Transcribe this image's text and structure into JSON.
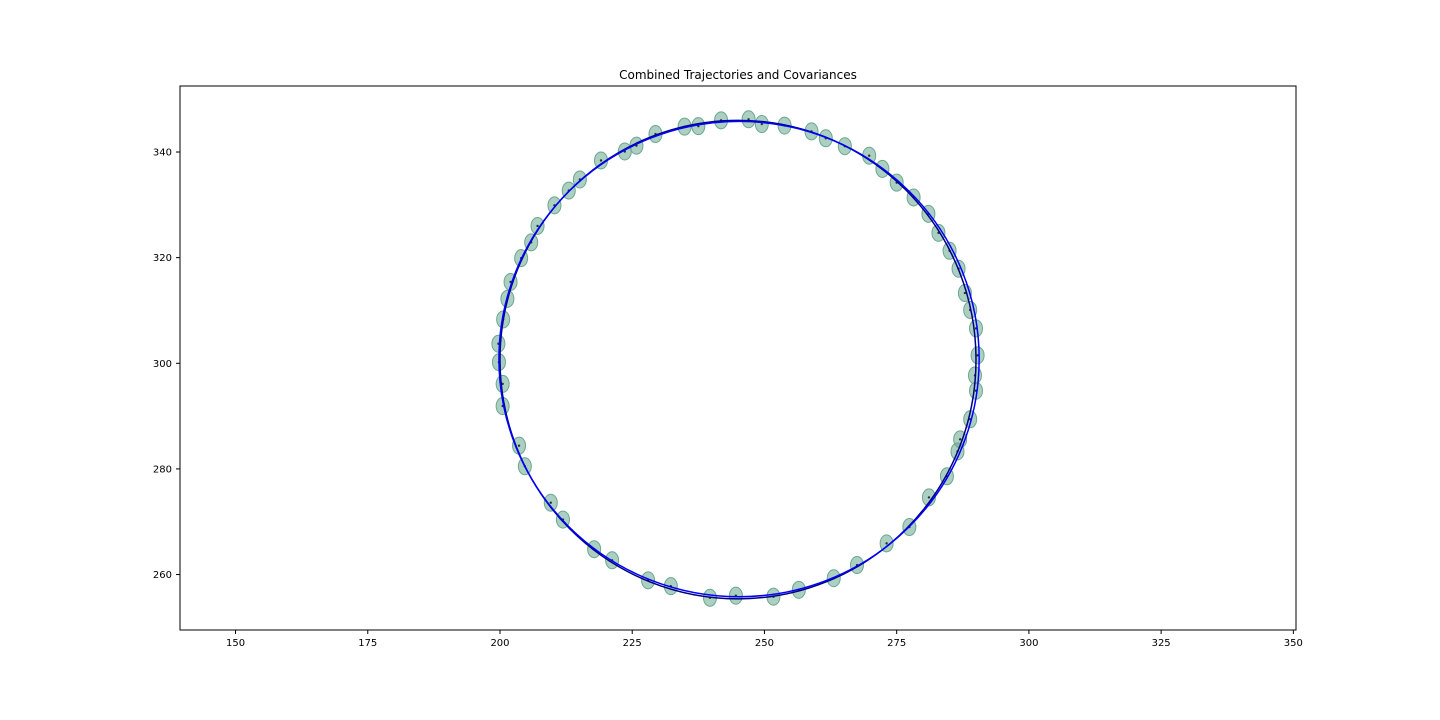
{
  "chart_data": {
    "type": "scatter",
    "title": "Combined Trajectories and Covariances",
    "xlabel": "",
    "ylabel": "",
    "xlim": [
      139.5,
      350.5
    ],
    "ylim": [
      249.5,
      352.5
    ],
    "xticks": [
      150,
      175,
      200,
      225,
      250,
      275,
      300,
      325,
      350
    ],
    "yticks": [
      260,
      280,
      300,
      320,
      340
    ],
    "grid": false,
    "series": [
      {
        "kind": "line",
        "color": "#000080",
        "center": [
          245.0,
          300.7
        ],
        "radius_x": 45.0,
        "radius_y": 45.3
      },
      {
        "kind": "line",
        "color": "#0000ff",
        "center": [
          245.2,
          300.8
        ],
        "radius_x": 45.4,
        "radius_y": 45.0
      },
      {
        "kind": "ellipse",
        "color": "#6aa88e",
        "points": [
          [
            247,
            346.2
          ],
          [
            249.5,
            345.3
          ],
          [
            253.8,
            345
          ],
          [
            258.9,
            343.9
          ],
          [
            261.6,
            342.6
          ],
          [
            265.2,
            341.1
          ],
          [
            269.8,
            339.3
          ],
          [
            272.3,
            336.8
          ],
          [
            275,
            334.2
          ],
          [
            278.2,
            331.4
          ],
          [
            281,
            328.3
          ],
          [
            282.9,
            324.7
          ],
          [
            285,
            321.3
          ],
          [
            286.7,
            317.9
          ],
          [
            287.9,
            313.3
          ],
          [
            288.9,
            310.1
          ],
          [
            290,
            306.6
          ],
          [
            290.3,
            301.5
          ],
          [
            289.8,
            297.7
          ],
          [
            290,
            294.8
          ],
          [
            288.9,
            289.4
          ],
          [
            287,
            285.6
          ],
          [
            286.5,
            283.3
          ],
          [
            284.5,
            278.6
          ],
          [
            281.1,
            274.6
          ],
          [
            277.4,
            269
          ],
          [
            273.1,
            265.9
          ],
          [
            267.5,
            261.8
          ],
          [
            263.1,
            259.3
          ],
          [
            256.5,
            257.1
          ],
          [
            251.7,
            255.8
          ],
          [
            244.6,
            256
          ],
          [
            239.7,
            255.6
          ],
          [
            232.3,
            257.8
          ],
          [
            228,
            258.9
          ],
          [
            221.2,
            262.7
          ],
          [
            217.8,
            264.8
          ],
          [
            211.9,
            270.4
          ],
          [
            209.6,
            273.6
          ],
          [
            204.7,
            280.5
          ],
          [
            203.6,
            284.4
          ],
          [
            200.5,
            291.9
          ],
          [
            200.5,
            296.1
          ],
          [
            199.8,
            300.2
          ],
          [
            199.7,
            303.7
          ],
          [
            200.6,
            308.3
          ],
          [
            201.4,
            312.2
          ],
          [
            202,
            315.4
          ],
          [
            204,
            319.9
          ],
          [
            205.9,
            322.9
          ],
          [
            207.1,
            326
          ],
          [
            210.3,
            329.9
          ],
          [
            213,
            332.7
          ],
          [
            215.1,
            334.8
          ],
          [
            219.1,
            338.4
          ],
          [
            223.6,
            340.1
          ],
          [
            225.8,
            341.2
          ],
          [
            229.4,
            343.4
          ],
          [
            234.9,
            344.8
          ],
          [
            237.5,
            344.9
          ],
          [
            241.8,
            346
          ]
        ]
      }
    ]
  }
}
